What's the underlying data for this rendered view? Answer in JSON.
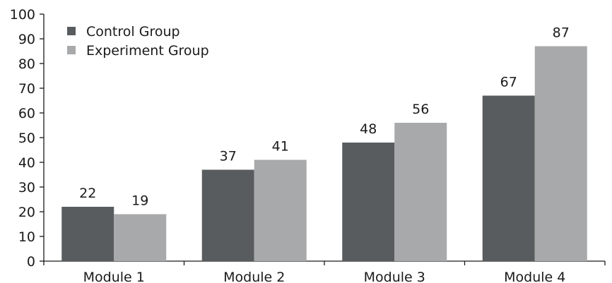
{
  "chart_data": {
    "type": "bar",
    "title": "",
    "xlabel": "",
    "ylabel": "",
    "categories": [
      "Module 1",
      "Module 2",
      "Module 3",
      "Module 4"
    ],
    "series": [
      {
        "name": "Control Group",
        "color": "#595c5e",
        "values": [
          22,
          37,
          48,
          67
        ]
      },
      {
        "name": "Experiment Group",
        "color": "#a8a9aa",
        "values": [
          19,
          41,
          56,
          87
        ]
      }
    ],
    "ylim": [
      0,
      100
    ],
    "yticks": [
      0,
      10,
      20,
      30,
      40,
      50,
      60,
      70,
      80,
      90,
      100
    ],
    "grid": false,
    "legend_position": "top-left",
    "data_labels": true
  }
}
